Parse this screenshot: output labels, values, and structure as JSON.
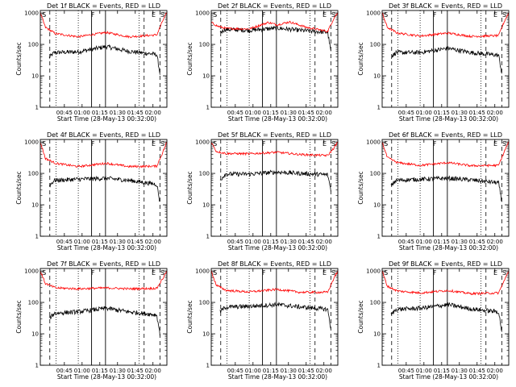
{
  "figure": {
    "colors": {
      "events": "#000000",
      "lld": "#ff0000",
      "axes": "#000000",
      "background": "#ffffff"
    }
  },
  "chart_data": [
    {
      "type": "line",
      "title": "Det 1f BLACK = Events, RED = LLD",
      "xlabel": "Start Time (28-May-13 00:32:00)",
      "ylabel": "Counts/sec",
      "x_ticks": [
        "00:45",
        "01:00",
        "01:15",
        "01:30",
        "01:45",
        "02:00"
      ],
      "y_ticks": [
        "1",
        "10",
        "100",
        "1000"
      ],
      "y_scale": "log",
      "ylim": [
        1,
        1200
      ],
      "markers": [
        "S",
        "F",
        "E",
        "S"
      ],
      "grid": false,
      "series": [
        {
          "name": "Events",
          "color": "#000000",
          "shape": [
            [
              0.07,
              1,
              38
            ],
            [
              0.11,
              1,
              55
            ],
            [
              0.3,
              1,
              58
            ],
            [
              0.52,
              1,
              85
            ],
            [
              0.7,
              1,
              60
            ],
            [
              0.92,
              1,
              48
            ],
            [
              0.945,
              1,
              12
            ]
          ]
        },
        {
          "name": "LLD",
          "color": "#ff0000",
          "shape": [
            [
              0,
              1,
              1000
            ],
            [
              0.04,
              1,
              350
            ],
            [
              0.12,
              1,
              220
            ],
            [
              0.3,
              1,
              175
            ],
            [
              0.52,
              1,
              240
            ],
            [
              0.7,
              1,
              175
            ],
            [
              0.92,
              1,
              200
            ],
            [
              0.97,
              1,
              600
            ],
            [
              1,
              1,
              1000
            ]
          ]
        }
      ]
    },
    {
      "type": "line",
      "title": "Det 2f BLACK = Events, RED = LLD",
      "xlabel": "Start Time (28-May-13 00:32:00)",
      "ylabel": "Counts/sec",
      "x_ticks": [
        "00:45",
        "01:00",
        "01:15",
        "01:30",
        "01:45",
        "02:00"
      ],
      "y_ticks": [
        "1",
        "10",
        "100",
        "1000"
      ],
      "y_scale": "log",
      "ylim": [
        1,
        1200
      ],
      "markers": [
        "S",
        "F",
        "E",
        "S"
      ],
      "grid": false,
      "series": [
        {
          "name": "Events",
          "color": "#000000",
          "shape": [
            [
              0.07,
              1,
              240
            ],
            [
              0.11,
              1,
              300
            ],
            [
              0.3,
              1,
              280
            ],
            [
              0.52,
              1,
              330
            ],
            [
              0.7,
              1,
              280
            ],
            [
              0.92,
              1,
              240
            ],
            [
              0.945,
              1,
              60
            ]
          ]
        },
        {
          "name": "LLD",
          "color": "#ff0000",
          "shape": [
            [
              0,
              1,
              500
            ],
            [
              0.05,
              1,
              380
            ],
            [
              0.12,
              1,
              320
            ],
            [
              0.3,
              1,
              310
            ],
            [
              0.45,
              1,
              500
            ],
            [
              0.52,
              1,
              420
            ],
            [
              0.62,
              1,
              520
            ],
            [
              0.75,
              1,
              350
            ],
            [
              0.92,
              1,
              260
            ],
            [
              0.97,
              1,
              700
            ],
            [
              1,
              1,
              1000
            ]
          ]
        }
      ]
    },
    {
      "type": "line",
      "title": "Det 3f BLACK = Events, RED = LLD",
      "xlabel": "Start Time (28-May-13 00:32:00)",
      "ylabel": "Counts/sec",
      "x_ticks": [
        "00:45",
        "01:00",
        "01:15",
        "01:30",
        "01:45",
        "02:00"
      ],
      "y_ticks": [
        "1",
        "10",
        "100",
        "1000"
      ],
      "y_scale": "log",
      "ylim": [
        1,
        1200
      ],
      "markers": [
        "S",
        "F",
        "E",
        "S"
      ],
      "grid": false,
      "series": [
        {
          "name": "Events",
          "color": "#000000",
          "shape": [
            [
              0.07,
              1,
              40
            ],
            [
              0.11,
              1,
              55
            ],
            [
              0.3,
              1,
              55
            ],
            [
              0.52,
              1,
              75
            ],
            [
              0.7,
              1,
              55
            ],
            [
              0.92,
              1,
              45
            ],
            [
              0.945,
              1,
              12
            ]
          ]
        },
        {
          "name": "LLD",
          "color": "#ff0000",
          "shape": [
            [
              0,
              1,
              1000
            ],
            [
              0.04,
              1,
              350
            ],
            [
              0.12,
              1,
              230
            ],
            [
              0.3,
              1,
              185
            ],
            [
              0.52,
              1,
              230
            ],
            [
              0.7,
              1,
              180
            ],
            [
              0.92,
              1,
              190
            ],
            [
              0.97,
              1,
              600
            ],
            [
              1,
              1,
              1000
            ]
          ]
        }
      ]
    },
    {
      "type": "line",
      "title": "Det 4f BLACK = Events, RED = LLD",
      "xlabel": "Start Time (28-May-13 00:32:00)",
      "ylabel": "Counts/sec",
      "x_ticks": [
        "00:45",
        "01:00",
        "01:15",
        "01:30",
        "01:45",
        "02:00"
      ],
      "y_ticks": [
        "1",
        "10",
        "100",
        "1000"
      ],
      "y_scale": "log",
      "ylim": [
        1,
        1200
      ],
      "markers": [
        "S",
        "F",
        "E",
        "S"
      ],
      "grid": false,
      "series": [
        {
          "name": "Events",
          "color": "#000000",
          "shape": [
            [
              0.07,
              1,
              40
            ],
            [
              0.11,
              1,
              60
            ],
            [
              0.3,
              1,
              65
            ],
            [
              0.52,
              1,
              70
            ],
            [
              0.7,
              1,
              60
            ],
            [
              0.92,
              1,
              45
            ],
            [
              0.945,
              1,
              12
            ]
          ]
        },
        {
          "name": "LLD",
          "color": "#ff0000",
          "shape": [
            [
              0,
              1,
              1000
            ],
            [
              0.04,
              1,
              300
            ],
            [
              0.12,
              1,
              210
            ],
            [
              0.3,
              1,
              165
            ],
            [
              0.52,
              1,
              210
            ],
            [
              0.7,
              1,
              165
            ],
            [
              0.92,
              1,
              170
            ],
            [
              0.97,
              1,
              500
            ],
            [
              1,
              1,
              1000
            ]
          ]
        }
      ]
    },
    {
      "type": "line",
      "title": "Det 5f BLACK = Events, RED = LLD",
      "xlabel": "Start Time (28-May-13 00:32:00)",
      "ylabel": "Counts/sec",
      "x_ticks": [
        "00:45",
        "01:00",
        "01:15",
        "01:30",
        "01:45",
        "02:00"
      ],
      "y_ticks": [
        "1",
        "10",
        "100",
        "1000"
      ],
      "y_scale": "log",
      "ylim": [
        1,
        1200
      ],
      "markers": [
        "S",
        "F",
        "E",
        "S"
      ],
      "grid": false,
      "series": [
        {
          "name": "Events",
          "color": "#000000",
          "shape": [
            [
              0.07,
              1,
              60
            ],
            [
              0.11,
              1,
              95
            ],
            [
              0.3,
              1,
              95
            ],
            [
              0.52,
              1,
              110
            ],
            [
              0.7,
              1,
              100
            ],
            [
              0.92,
              1,
              90
            ],
            [
              0.945,
              1,
              30
            ]
          ]
        },
        {
          "name": "LLD",
          "color": "#ff0000",
          "shape": [
            [
              0,
              1,
              1000
            ],
            [
              0.04,
              1,
              500
            ],
            [
              0.12,
              1,
              430
            ],
            [
              0.3,
              1,
              420
            ],
            [
              0.52,
              1,
              470
            ],
            [
              0.7,
              1,
              400
            ],
            [
              0.92,
              1,
              370
            ],
            [
              0.97,
              1,
              650
            ],
            [
              1,
              1,
              1000
            ]
          ]
        }
      ]
    },
    {
      "type": "line",
      "title": "Det 6f BLACK = Events, RED = LLD",
      "xlabel": "Start Time (28-May-13 00:32:00)",
      "ylabel": "Counts/sec",
      "x_ticks": [
        "00:45",
        "01:00",
        "01:15",
        "01:30",
        "01:45",
        "02:00"
      ],
      "y_ticks": [
        "1",
        "10",
        "100",
        "1000"
      ],
      "y_scale": "log",
      "ylim": [
        1,
        1200
      ],
      "markers": [
        "S",
        "F",
        "E",
        "S"
      ],
      "grid": false,
      "series": [
        {
          "name": "Events",
          "color": "#000000",
          "shape": [
            [
              0.07,
              1,
              40
            ],
            [
              0.11,
              1,
              60
            ],
            [
              0.3,
              1,
              65
            ],
            [
              0.52,
              1,
              70
            ],
            [
              0.7,
              1,
              62
            ],
            [
              0.92,
              1,
              50
            ],
            [
              0.945,
              1,
              12
            ]
          ]
        },
        {
          "name": "LLD",
          "color": "#ff0000",
          "shape": [
            [
              0,
              1,
              1000
            ],
            [
              0.04,
              1,
              320
            ],
            [
              0.12,
              1,
              220
            ],
            [
              0.3,
              1,
              180
            ],
            [
              0.52,
              1,
              220
            ],
            [
              0.7,
              1,
              175
            ],
            [
              0.92,
              1,
              180
            ],
            [
              0.97,
              1,
              550
            ],
            [
              1,
              1,
              1000
            ]
          ]
        }
      ]
    },
    {
      "type": "line",
      "title": "Det 7f BLACK = Events, RED = LLD",
      "xlabel": "Start Time (28-May-13 00:32:00)",
      "ylabel": "Counts/sec",
      "x_ticks": [
        "00:45",
        "01:00",
        "01:15",
        "01:30",
        "01:45",
        "02:00"
      ],
      "y_ticks": [
        "1",
        "10",
        "100",
        "1000"
      ],
      "y_scale": "log",
      "ylim": [
        1,
        1200
      ],
      "markers": [
        "S",
        "F",
        "E",
        "S"
      ],
      "grid": false,
      "series": [
        {
          "name": "Events",
          "color": "#000000",
          "shape": [
            [
              0.07,
              1,
              30
            ],
            [
              0.11,
              1,
              45
            ],
            [
              0.3,
              1,
              50
            ],
            [
              0.52,
              1,
              65
            ],
            [
              0.7,
              1,
              50
            ],
            [
              0.92,
              1,
              40
            ],
            [
              0.945,
              1,
              10
            ]
          ]
        },
        {
          "name": "LLD",
          "color": "#ff0000",
          "shape": [
            [
              0,
              1,
              1000
            ],
            [
              0.04,
              1,
              400
            ],
            [
              0.12,
              1,
              290
            ],
            [
              0.3,
              1,
              270
            ],
            [
              0.52,
              1,
              290
            ],
            [
              0.7,
              1,
              270
            ],
            [
              0.92,
              1,
              280
            ],
            [
              0.97,
              1,
              600
            ],
            [
              1,
              1,
              1000
            ]
          ]
        }
      ]
    },
    {
      "type": "line",
      "title": "Det 8f BLACK = Events, RED = LLD",
      "xlabel": "Start Time (28-May-13 00:32:00)",
      "ylabel": "Counts/sec",
      "x_ticks": [
        "00:45",
        "01:00",
        "01:15",
        "01:30",
        "01:45",
        "02:00"
      ],
      "y_ticks": [
        "1",
        "10",
        "100",
        "1000"
      ],
      "y_scale": "log",
      "ylim": [
        1,
        1200
      ],
      "markers": [
        "S",
        "F",
        "E",
        "S"
      ],
      "grid": false,
      "series": [
        {
          "name": "Events",
          "color": "#000000",
          "shape": [
            [
              0.07,
              1,
              50
            ],
            [
              0.11,
              1,
              70
            ],
            [
              0.3,
              1,
              75
            ],
            [
              0.52,
              1,
              85
            ],
            [
              0.7,
              1,
              72
            ],
            [
              0.92,
              1,
              60
            ],
            [
              0.945,
              1,
              15
            ]
          ]
        },
        {
          "name": "LLD",
          "color": "#ff0000",
          "shape": [
            [
              0,
              1,
              1000
            ],
            [
              0.04,
              1,
              350
            ],
            [
              0.12,
              1,
              240
            ],
            [
              0.3,
              1,
              215
            ],
            [
              0.52,
              1,
              260
            ],
            [
              0.7,
              1,
              210
            ],
            [
              0.92,
              1,
              210
            ],
            [
              0.97,
              1,
              600
            ],
            [
              1,
              1,
              1000
            ]
          ]
        }
      ]
    },
    {
      "type": "line",
      "title": "Det 9f BLACK = Events, RED = LLD",
      "xlabel": "Start Time (28-May-13 00:32:00)",
      "ylabel": "Counts/sec",
      "x_ticks": [
        "00:45",
        "01:00",
        "01:15",
        "01:30",
        "01:45",
        "02:00"
      ],
      "y_ticks": [
        "1",
        "10",
        "100",
        "1000"
      ],
      "y_scale": "log",
      "ylim": [
        1,
        1200
      ],
      "markers": [
        "S",
        "F",
        "E",
        "S"
      ],
      "grid": false,
      "series": [
        {
          "name": "Events",
          "color": "#000000",
          "shape": [
            [
              0.07,
              1,
              40
            ],
            [
              0.11,
              1,
              60
            ],
            [
              0.3,
              1,
              65
            ],
            [
              0.52,
              1,
              85
            ],
            [
              0.7,
              1,
              62
            ],
            [
              0.92,
              1,
              50
            ],
            [
              0.945,
              1,
              12
            ]
          ]
        },
        {
          "name": "LLD",
          "color": "#ff0000",
          "shape": [
            [
              0,
              1,
              1000
            ],
            [
              0.04,
              1,
              330
            ],
            [
              0.12,
              1,
              230
            ],
            [
              0.3,
              1,
              200
            ],
            [
              0.52,
              1,
              240
            ],
            [
              0.7,
              1,
              190
            ],
            [
              0.92,
              1,
              200
            ],
            [
              0.97,
              1,
              550
            ],
            [
              1,
              1,
              1000
            ]
          ]
        }
      ]
    }
  ]
}
